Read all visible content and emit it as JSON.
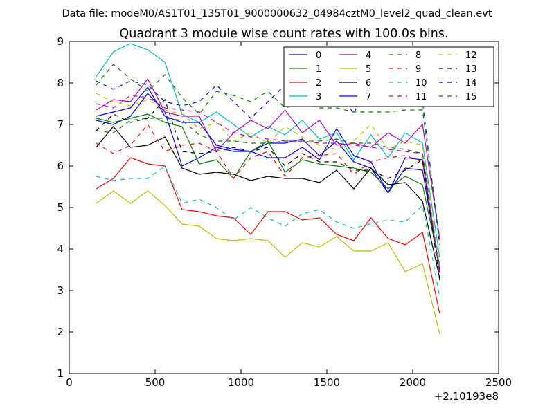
{
  "chart_data": {
    "type": "line",
    "suptitle": "Data file: modeM0/AS1T01_135T01_9000000632_04984cztM0_level2_quad_clean.evt",
    "title": "Quadrant 3 module wise count rates with 100.0s bins.",
    "xlabel": "",
    "ylabel": "",
    "x_offset_label": "+2.10193e8",
    "xlim": [
      0,
      2500
    ],
    "ylim": [
      1,
      9
    ],
    "xticks": [
      "0",
      "500",
      "1000",
      "1500",
      "2000",
      "2500"
    ],
    "yticks": [
      "1",
      "2",
      "3",
      "4",
      "5",
      "6",
      "7",
      "8",
      "9"
    ],
    "legend_position": "top-right",
    "x": [
      157,
      257,
      357,
      457,
      557,
      657,
      757,
      857,
      957,
      1057,
      1157,
      1257,
      1357,
      1457,
      1557,
      1657,
      1757,
      1857,
      1957,
      2057,
      2157
    ],
    "series": [
      {
        "name": "0",
        "color": "#0000ff",
        "dash": false,
        "values": [
          7.1,
          7.0,
          7.2,
          7.75,
          7.3,
          6.0,
          6.2,
          6.45,
          6.35,
          6.35,
          6.55,
          6.55,
          6.65,
          6.25,
          6.6,
          6.1,
          5.95,
          5.35,
          5.95,
          5.9,
          3.5
        ]
      },
      {
        "name": "1",
        "color": "#008000",
        "dash": false,
        "values": [
          7.15,
          7.05,
          7.15,
          7.25,
          7.05,
          6.95,
          6.05,
          6.15,
          5.7,
          6.35,
          6.6,
          5.85,
          6.15,
          6.05,
          6.0,
          5.95,
          5.85,
          5.45,
          5.75,
          5.55,
          3.6
        ]
      },
      {
        "name": "2",
        "color": "#ff0000",
        "dash": false,
        "values": [
          5.45,
          5.7,
          6.2,
          6.05,
          6.0,
          4.95,
          4.9,
          4.8,
          4.75,
          4.35,
          4.9,
          4.9,
          4.7,
          4.75,
          4.35,
          4.2,
          4.75,
          4.25,
          4.1,
          4.4,
          2.45
        ]
      },
      {
        "name": "3",
        "color": "#00bfbf",
        "dash": false,
        "values": [
          8.15,
          8.75,
          8.95,
          8.8,
          8.5,
          7.25,
          7.05,
          7.3,
          7.0,
          6.7,
          6.95,
          6.75,
          7.1,
          6.65,
          6.8,
          6.15,
          6.75,
          6.2,
          6.8,
          6.55,
          3.8
        ]
      },
      {
        "name": "4",
        "color": "#bf00bf",
        "dash": false,
        "values": [
          7.35,
          7.6,
          7.55,
          8.1,
          7.3,
          7.2,
          7.2,
          6.35,
          6.8,
          7.1,
          6.9,
          7.35,
          6.8,
          7.1,
          6.5,
          6.55,
          6.45,
          6.8,
          6.55,
          7.0,
          4.25
        ]
      },
      {
        "name": "5",
        "color": "#bfbf00",
        "dash": false,
        "values": [
          5.1,
          5.4,
          5.1,
          5.4,
          5.05,
          4.6,
          4.55,
          4.25,
          4.2,
          4.25,
          4.2,
          3.8,
          4.15,
          4.05,
          4.3,
          3.95,
          3.95,
          4.15,
          3.45,
          3.65,
          1.95
        ]
      },
      {
        "name": "6",
        "color": "#000000",
        "dash": false,
        "values": [
          6.45,
          6.95,
          6.45,
          6.5,
          6.7,
          5.95,
          5.8,
          5.85,
          5.8,
          5.65,
          5.75,
          5.7,
          5.7,
          5.6,
          5.9,
          5.45,
          5.95,
          5.55,
          5.6,
          5.15,
          3.3
        ]
      },
      {
        "name": "7",
        "color": "#0000ff",
        "dash": false,
        "values": [
          7.2,
          7.3,
          7.4,
          7.9,
          7.2,
          7.05,
          7.05,
          6.5,
          6.4,
          6.35,
          6.2,
          6.2,
          6.45,
          6.15,
          6.9,
          6.25,
          6.1,
          5.35,
          6.2,
          6.15,
          3.45
        ]
      },
      {
        "name": "8",
        "color": "#008000",
        "dash": true,
        "values": [
          6.85,
          6.8,
          7.1,
          7.15,
          7.15,
          7.1,
          6.75,
          6.6,
          6.6,
          6.55,
          6.55,
          6.6,
          6.6,
          6.6,
          6.65,
          6.55,
          6.55,
          6.45,
          6.4,
          6.3,
          3.6
        ]
      },
      {
        "name": "9",
        "color": "#ff0000",
        "dash": true,
        "values": [
          6.55,
          6.3,
          6.5,
          7.0,
          6.35,
          6.5,
          6.55,
          6.35,
          5.7,
          6.2,
          6.35,
          5.75,
          6.2,
          6.25,
          6.3,
          5.8,
          6.1,
          6.2,
          6.25,
          6.1,
          3.55
        ]
      },
      {
        "name": "10",
        "color": "#00bfbf",
        "dash": true,
        "values": [
          5.75,
          5.65,
          5.7,
          5.7,
          6.0,
          5.1,
          5.2,
          5.0,
          4.7,
          5.0,
          4.75,
          4.55,
          4.85,
          4.95,
          4.65,
          4.5,
          4.6,
          4.7,
          4.65,
          5.05,
          2.85
        ]
      },
      {
        "name": "11",
        "color": "#bf00bf",
        "dash": true,
        "values": [
          7.5,
          7.4,
          7.7,
          7.65,
          7.4,
          7.35,
          7.3,
          7.05,
          6.8,
          6.7,
          6.65,
          6.6,
          6.6,
          6.55,
          6.55,
          6.5,
          6.45,
          6.4,
          6.35,
          6.3,
          3.4
        ]
      },
      {
        "name": "12",
        "color": "#bfbf00",
        "dash": true,
        "values": [
          7.75,
          7.55,
          7.45,
          7.6,
          7.35,
          7.25,
          6.9,
          7.05,
          6.6,
          6.8,
          6.55,
          6.95,
          6.7,
          6.5,
          6.4,
          6.6,
          7.0,
          6.4,
          6.6,
          6.5,
          3.5
        ]
      },
      {
        "name": "13",
        "color": "#000000",
        "dash": true,
        "values": [
          6.85,
          7.25,
          7.05,
          7.15,
          7.6,
          6.35,
          6.3,
          6.35,
          6.45,
          6.35,
          6.45,
          6.0,
          6.3,
          6.1,
          6.1,
          5.9,
          5.9,
          5.7,
          5.9,
          6.15,
          3.25
        ]
      },
      {
        "name": "14",
        "color": "#0000ff",
        "dash": true,
        "values": [
          8.05,
          7.85,
          8.05,
          7.95,
          7.55,
          7.45,
          7.55,
          7.95,
          7.55,
          7.15,
          7.55,
          7.95,
          7.55,
          7.75,
          7.95,
          7.25,
          8.3,
          7.95,
          7.75,
          7.55,
          4.1
        ]
      },
      {
        "name": "15",
        "color": "#008000",
        "dash": true,
        "values": [
          7.95,
          8.45,
          8.1,
          7.8,
          8.2,
          7.65,
          7.25,
          7.8,
          7.7,
          7.55,
          7.8,
          7.4,
          7.5,
          7.4,
          7.4,
          7.3,
          7.3,
          7.3,
          7.35,
          7.35,
          4.25
        ]
      }
    ]
  }
}
